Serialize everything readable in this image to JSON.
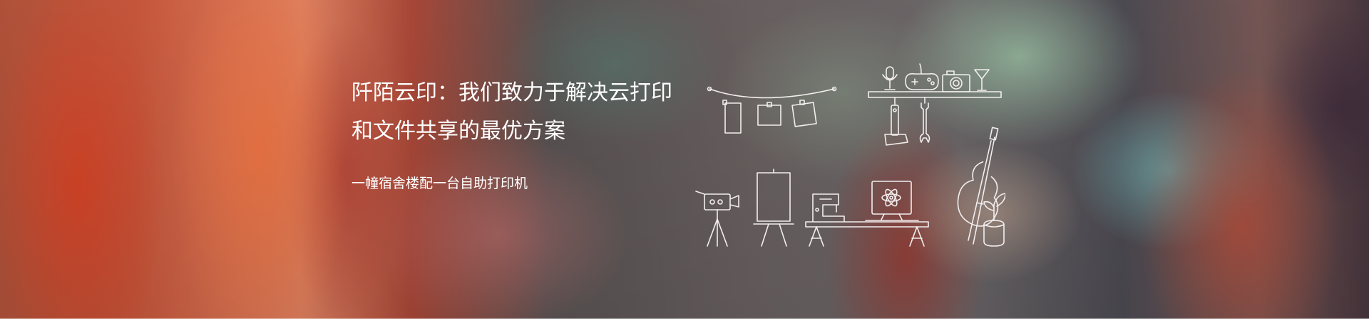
{
  "banner": {
    "headline_line1": "阡陌云印：我们致力于解决云打印",
    "headline_line2": "和文件共享的最优方案",
    "subline": "一幢宿舍楼配一台自助打印机"
  },
  "illustration": {
    "icons": [
      "bunting-icon",
      "shelf-icon",
      "microphone-icon",
      "gamepad-icon",
      "camera-icon",
      "cocktail-glass-icon",
      "hammer-icon",
      "wrench-icon",
      "movie-camera-icon",
      "easel-icon",
      "sewing-machine-icon",
      "monitor-atom-icon",
      "desk-icon",
      "cello-icon",
      "plant-pot-icon"
    ]
  },
  "colors": {
    "text": "#ffffff",
    "line_art": "#f2eeee"
  }
}
